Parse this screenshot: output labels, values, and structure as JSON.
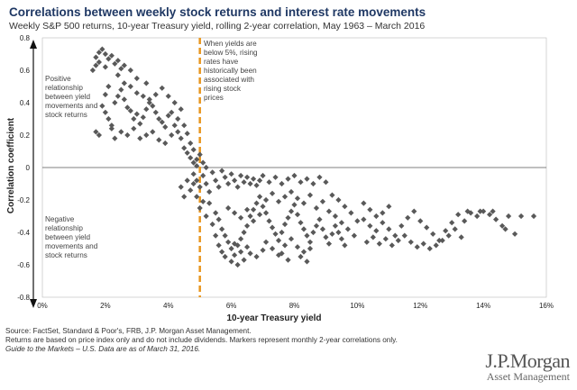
{
  "header": {
    "title": "Correlations between weekly stock returns and interest rate movements",
    "subtitle": "Weekly S&P 500 returns, 10-year Treasury yield, rolling 2-year correlation, May 1963 – March 2016"
  },
  "footer": {
    "source": "Source: FactSet, Standard & Poor's, FRB, J.P. Morgan Asset Management.",
    "note": "Returns are based on price index only and do not include dividends. Markers represent monthly 2-year correlations only.",
    "guide": "Guide to the Markets – U.S. Data are as of March 31, 2016."
  },
  "brand": {
    "name": "J.P.Morgan",
    "sub": "Asset Management"
  },
  "colors": {
    "marker": "#595959",
    "threshold": "#e8961e",
    "title": "#1f3864"
  },
  "chart_data": {
    "type": "scatter",
    "title": "Correlations between weekly stock returns and interest rate movements",
    "xlabel": "10-year Treasury yield",
    "ylabel": "Correlation coefficient",
    "xlim": [
      0,
      16
    ],
    "ylim": [
      -0.8,
      0.8
    ],
    "x_ticks": [
      "0%",
      "2%",
      "4%",
      "6%",
      "8%",
      "10%",
      "12%",
      "14%",
      "16%"
    ],
    "y_ticks": [
      "0.8",
      "0.6",
      "0.4",
      "0.2",
      "0",
      "-0.2",
      "-0.4",
      "-0.6",
      "-0.8"
    ],
    "threshold_x": 5,
    "annotations": {
      "threshold": "When yields are below 5%, rising rates have historically been associated with rising stock prices",
      "positive": "Positive relationship between yield movements and stock returns",
      "negative": "Negative relationship between yield movements and stock returns"
    },
    "points": [
      [
        1.6,
        0.6
      ],
      [
        1.7,
        0.63
      ],
      [
        1.7,
        0.68
      ],
      [
        1.8,
        0.71
      ],
      [
        1.8,
        0.65
      ],
      [
        1.9,
        0.73
      ],
      [
        2.0,
        0.7
      ],
      [
        2.0,
        0.62
      ],
      [
        2.1,
        0.67
      ],
      [
        2.2,
        0.69
      ],
      [
        2.3,
        0.64
      ],
      [
        2.4,
        0.66
      ],
      [
        2.5,
        0.61
      ],
      [
        2.6,
        0.63
      ],
      [
        2.8,
        0.6
      ],
      [
        1.9,
        0.38
      ],
      [
        2.0,
        0.34
      ],
      [
        2.1,
        0.3
      ],
      [
        2.2,
        0.26
      ],
      [
        1.7,
        0.22
      ],
      [
        1.8,
        0.2
      ],
      [
        2.3,
        0.4
      ],
      [
        2.4,
        0.44
      ],
      [
        2.5,
        0.48
      ],
      [
        2.6,
        0.42
      ],
      [
        2.7,
        0.37
      ],
      [
        2.8,
        0.35
      ],
      [
        2.9,
        0.3
      ],
      [
        3.0,
        0.33
      ],
      [
        3.1,
        0.27
      ],
      [
        3.2,
        0.31
      ],
      [
        3.3,
        0.36
      ],
      [
        3.4,
        0.42
      ],
      [
        3.5,
        0.38
      ],
      [
        3.6,
        0.34
      ],
      [
        3.7,
        0.3
      ],
      [
        3.8,
        0.28
      ],
      [
        3.9,
        0.25
      ],
      [
        4.0,
        0.32
      ],
      [
        2.2,
        0.24
      ],
      [
        2.3,
        0.18
      ],
      [
        2.5,
        0.22
      ],
      [
        2.7,
        0.2
      ],
      [
        2.9,
        0.24
      ],
      [
        3.1,
        0.18
      ],
      [
        3.3,
        0.2
      ],
      [
        3.5,
        0.22
      ],
      [
        3.7,
        0.17
      ],
      [
        3.9,
        0.15
      ],
      [
        4.1,
        0.2
      ],
      [
        4.2,
        0.26
      ],
      [
        4.3,
        0.22
      ],
      [
        4.4,
        0.18
      ],
      [
        4.5,
        0.12
      ],
      [
        4.6,
        0.09
      ],
      [
        4.7,
        0.06
      ],
      [
        4.8,
        0.03
      ],
      [
        4.9,
        0.01
      ],
      [
        2.6,
        0.52
      ],
      [
        2.8,
        0.5
      ],
      [
        3.0,
        0.46
      ],
      [
        3.2,
        0.44
      ],
      [
        3.4,
        0.4
      ],
      [
        3.6,
        0.45
      ],
      [
        3.8,
        0.49
      ],
      [
        4.0,
        0.44
      ],
      [
        4.2,
        0.4
      ],
      [
        4.4,
        0.36
      ],
      [
        3.0,
        0.55
      ],
      [
        3.3,
        0.52
      ],
      [
        2.4,
        0.57
      ],
      [
        2.1,
        0.5
      ],
      [
        2.0,
        0.45
      ],
      [
        4.1,
        0.34
      ],
      [
        4.3,
        0.3
      ],
      [
        4.5,
        0.26
      ],
      [
        4.6,
        0.21
      ],
      [
        4.7,
        0.15
      ],
      [
        4.8,
        0.11
      ],
      [
        4.9,
        0.05
      ],
      [
        5.0,
        0.08
      ],
      [
        5.1,
        0.03
      ],
      [
        5.2,
        0.0
      ],
      [
        4.8,
        -0.04
      ],
      [
        4.9,
        -0.08
      ],
      [
        5.0,
        -0.12
      ],
      [
        5.1,
        -0.05
      ],
      [
        5.2,
        -0.1
      ],
      [
        5.3,
        -0.15
      ],
      [
        5.4,
        -0.03
      ],
      [
        5.5,
        -0.08
      ],
      [
        5.6,
        -0.12
      ],
      [
        5.7,
        -0.02
      ],
      [
        5.8,
        -0.06
      ],
      [
        5.9,
        -0.1
      ],
      [
        6.0,
        -0.04
      ],
      [
        6.1,
        -0.08
      ],
      [
        6.2,
        -0.12
      ],
      [
        6.3,
        -0.05
      ],
      [
        6.4,
        -0.09
      ],
      [
        6.5,
        -0.06
      ],
      [
        6.6,
        -0.1
      ],
      [
        6.7,
        -0.07
      ],
      [
        6.8,
        -0.11
      ],
      [
        6.9,
        -0.08
      ],
      [
        7.0,
        -0.05
      ],
      [
        7.2,
        -0.09
      ],
      [
        7.4,
        -0.06
      ],
      [
        7.6,
        -0.1
      ],
      [
        7.8,
        -0.07
      ],
      [
        8.0,
        -0.05
      ],
      [
        8.2,
        -0.09
      ],
      [
        8.4,
        -0.07
      ],
      [
        8.6,
        -0.1
      ],
      [
        8.8,
        -0.06
      ],
      [
        9.0,
        -0.09
      ],
      [
        4.6,
        -0.08
      ],
      [
        4.7,
        -0.14
      ],
      [
        4.5,
        -0.18
      ],
      [
        4.4,
        -0.12
      ],
      [
        5.3,
        -0.22
      ],
      [
        5.5,
        -0.28
      ],
      [
        5.6,
        -0.32
      ],
      [
        5.7,
        -0.38
      ],
      [
        5.8,
        -0.42
      ],
      [
        5.9,
        -0.46
      ],
      [
        6.0,
        -0.5
      ],
      [
        6.1,
        -0.54
      ],
      [
        6.2,
        -0.48
      ],
      [
        6.3,
        -0.44
      ],
      [
        6.4,
        -0.4
      ],
      [
        6.5,
        -0.36
      ],
      [
        6.6,
        -0.3
      ],
      [
        6.7,
        -0.26
      ],
      [
        6.8,
        -0.22
      ],
      [
        6.9,
        -0.18
      ],
      [
        7.0,
        -0.24
      ],
      [
        7.1,
        -0.28
      ],
      [
        7.2,
        -0.33
      ],
      [
        7.3,
        -0.37
      ],
      [
        7.4,
        -0.41
      ],
      [
        7.5,
        -0.45
      ],
      [
        7.6,
        -0.4
      ],
      [
        7.7,
        -0.35
      ],
      [
        7.8,
        -0.31
      ],
      [
        7.9,
        -0.27
      ],
      [
        8.0,
        -0.23
      ],
      [
        8.1,
        -0.29
      ],
      [
        8.2,
        -0.34
      ],
      [
        8.3,
        -0.38
      ],
      [
        8.4,
        -0.42
      ],
      [
        8.5,
        -0.46
      ],
      [
        8.6,
        -0.4
      ],
      [
        8.7,
        -0.36
      ],
      [
        8.8,
        -0.32
      ],
      [
        8.9,
        -0.38
      ],
      [
        9.0,
        -0.43
      ],
      [
        9.1,
        -0.47
      ],
      [
        9.2,
        -0.41
      ],
      [
        9.3,
        -0.36
      ],
      [
        9.4,
        -0.4
      ],
      [
        9.5,
        -0.44
      ],
      [
        9.6,
        -0.48
      ],
      [
        5.8,
        -0.55
      ],
      [
        6.0,
        -0.58
      ],
      [
        6.2,
        -0.6
      ],
      [
        6.4,
        -0.57
      ],
      [
        6.6,
        -0.53
      ],
      [
        6.8,
        -0.55
      ],
      [
        7.0,
        -0.51
      ],
      [
        6.1,
        -0.47
      ],
      [
        6.3,
        -0.52
      ],
      [
        6.5,
        -0.49
      ],
      [
        5.4,
        -0.35
      ],
      [
        5.5,
        -0.42
      ],
      [
        5.6,
        -0.48
      ],
      [
        5.7,
        -0.52
      ],
      [
        7.1,
        -0.46
      ],
      [
        7.3,
        -0.5
      ],
      [
        7.5,
        -0.54
      ],
      [
        7.7,
        -0.48
      ],
      [
        7.9,
        -0.44
      ],
      [
        8.1,
        -0.49
      ],
      [
        8.3,
        -0.52
      ],
      [
        8.5,
        -0.5
      ],
      [
        5.9,
        -0.25
      ],
      [
        6.1,
        -0.28
      ],
      [
        6.3,
        -0.31
      ],
      [
        6.5,
        -0.26
      ],
      [
        6.7,
        -0.33
      ],
      [
        6.9,
        -0.29
      ],
      [
        7.1,
        -0.2
      ],
      [
        7.3,
        -0.16
      ],
      [
        7.5,
        -0.21
      ],
      [
        7.7,
        -0.18
      ],
      [
        7.9,
        -0.15
      ],
      [
        8.1,
        -0.19
      ],
      [
        8.3,
        -0.22
      ],
      [
        8.5,
        -0.17
      ],
      [
        8.7,
        -0.25
      ],
      [
        8.9,
        -0.21
      ],
      [
        9.1,
        -0.27
      ],
      [
        9.3,
        -0.3
      ],
      [
        9.5,
        -0.34
      ],
      [
        9.7,
        -0.38
      ],
      [
        9.9,
        -0.42
      ],
      [
        10.2,
        -0.22
      ],
      [
        10.4,
        -0.26
      ],
      [
        10.6,
        -0.3
      ],
      [
        10.8,
        -0.34
      ],
      [
        11.0,
        -0.38
      ],
      [
        11.2,
        -0.42
      ],
      [
        11.4,
        -0.36
      ],
      [
        11.6,
        -0.31
      ],
      [
        11.8,
        -0.27
      ],
      [
        12.0,
        -0.33
      ],
      [
        12.2,
        -0.37
      ],
      [
        12.4,
        -0.41
      ],
      [
        12.6,
        -0.45
      ],
      [
        12.8,
        -0.39
      ],
      [
        13.0,
        -0.34
      ],
      [
        13.2,
        -0.29
      ],
      [
        13.4,
        -0.33
      ],
      [
        13.6,
        -0.28
      ],
      [
        13.8,
        -0.3
      ],
      [
        14.0,
        -0.27
      ],
      [
        14.2,
        -0.29
      ],
      [
        14.4,
        -0.32
      ],
      [
        14.6,
        -0.36
      ],
      [
        14.8,
        -0.3
      ],
      [
        15.2,
        -0.3
      ],
      [
        15.6,
        -0.3
      ],
      [
        10.3,
        -0.46
      ],
      [
        10.5,
        -0.43
      ],
      [
        10.7,
        -0.47
      ],
      [
        10.9,
        -0.44
      ],
      [
        11.1,
        -0.48
      ],
      [
        11.3,
        -0.45
      ],
      [
        11.5,
        -0.42
      ],
      [
        11.7,
        -0.46
      ],
      [
        11.9,
        -0.49
      ],
      [
        12.1,
        -0.47
      ],
      [
        12.3,
        -0.5
      ],
      [
        12.5,
        -0.48
      ],
      [
        12.7,
        -0.45
      ],
      [
        12.9,
        -0.42
      ],
      [
        13.1,
        -0.38
      ],
      [
        13.3,
        -0.43
      ],
      [
        10.2,
        -0.32
      ],
      [
        10.4,
        -0.36
      ],
      [
        10.6,
        -0.39
      ],
      [
        10.8,
        -0.28
      ],
      [
        11.0,
        -0.24
      ],
      [
        9.8,
        -0.28
      ],
      [
        9.6,
        -0.24
      ],
      [
        9.4,
        -0.2
      ],
      [
        9.2,
        -0.17
      ],
      [
        10.0,
        -0.33
      ],
      [
        13.5,
        -0.27
      ],
      [
        13.9,
        -0.27
      ],
      [
        14.3,
        -0.27
      ],
      [
        14.7,
        -0.38
      ],
      [
        15.0,
        -0.41
      ],
      [
        8.4,
        -0.58
      ],
      [
        8.2,
        -0.55
      ],
      [
        7.8,
        -0.57
      ],
      [
        7.6,
        -0.53
      ],
      [
        4.9,
        -0.18
      ],
      [
        5.0,
        -0.25
      ],
      [
        5.1,
        -0.21
      ],
      [
        4.8,
        -0.1
      ],
      [
        5.2,
        -0.3
      ]
    ]
  }
}
